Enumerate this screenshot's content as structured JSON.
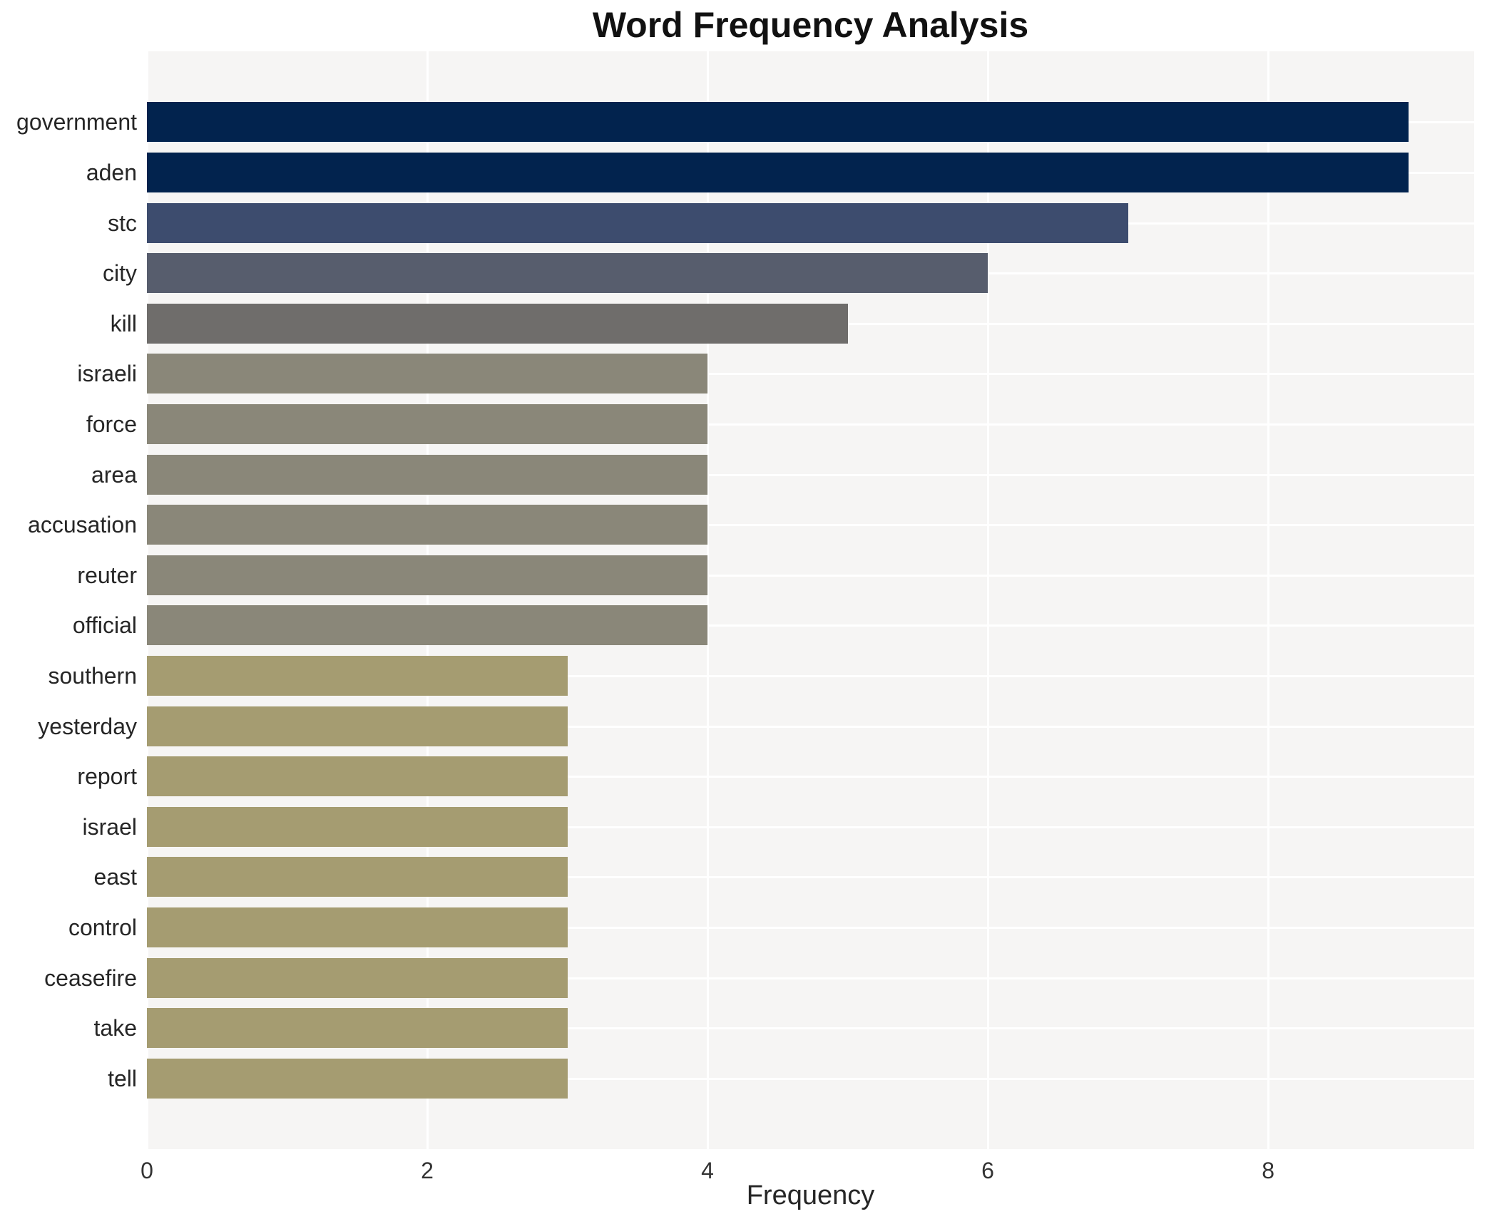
{
  "title": "Word Frequency Analysis",
  "chart_data": {
    "type": "bar",
    "orientation": "horizontal",
    "title": "Word Frequency Analysis",
    "xlabel": "Frequency",
    "ylabel": "",
    "xlim": [
      0,
      9.47
    ],
    "xticks": [
      "0",
      "2",
      "4",
      "6",
      "8"
    ],
    "grid": true,
    "legend": false,
    "categories": [
      "government",
      "aden",
      "stc",
      "city",
      "kill",
      "israeli",
      "force",
      "area",
      "accusation",
      "reuter",
      "official",
      "southern",
      "yesterday",
      "report",
      "israel",
      "east",
      "control",
      "ceasefire",
      "take",
      "tell"
    ],
    "values": [
      9,
      9,
      7,
      6,
      5,
      4,
      4,
      4,
      4,
      4,
      4,
      3,
      3,
      3,
      3,
      3,
      3,
      3,
      3,
      3
    ],
    "bar_colors": [
      "#02234e",
      "#02234e",
      "#3d4c6e",
      "#575d6d",
      "#6f6d6b",
      "#8a8779",
      "#8a8779",
      "#8a8779",
      "#8a8779",
      "#8a8779",
      "#8a8779",
      "#a59c71",
      "#a59c71",
      "#a59c71",
      "#a59c71",
      "#a59c71",
      "#a59c71",
      "#a59c71",
      "#a59c71",
      "#a59c71"
    ],
    "colors": {
      "plot_background": "#f6f5f4",
      "gridline": "#ffffff",
      "title_text": "#111111",
      "label_text": "#262626"
    }
  }
}
